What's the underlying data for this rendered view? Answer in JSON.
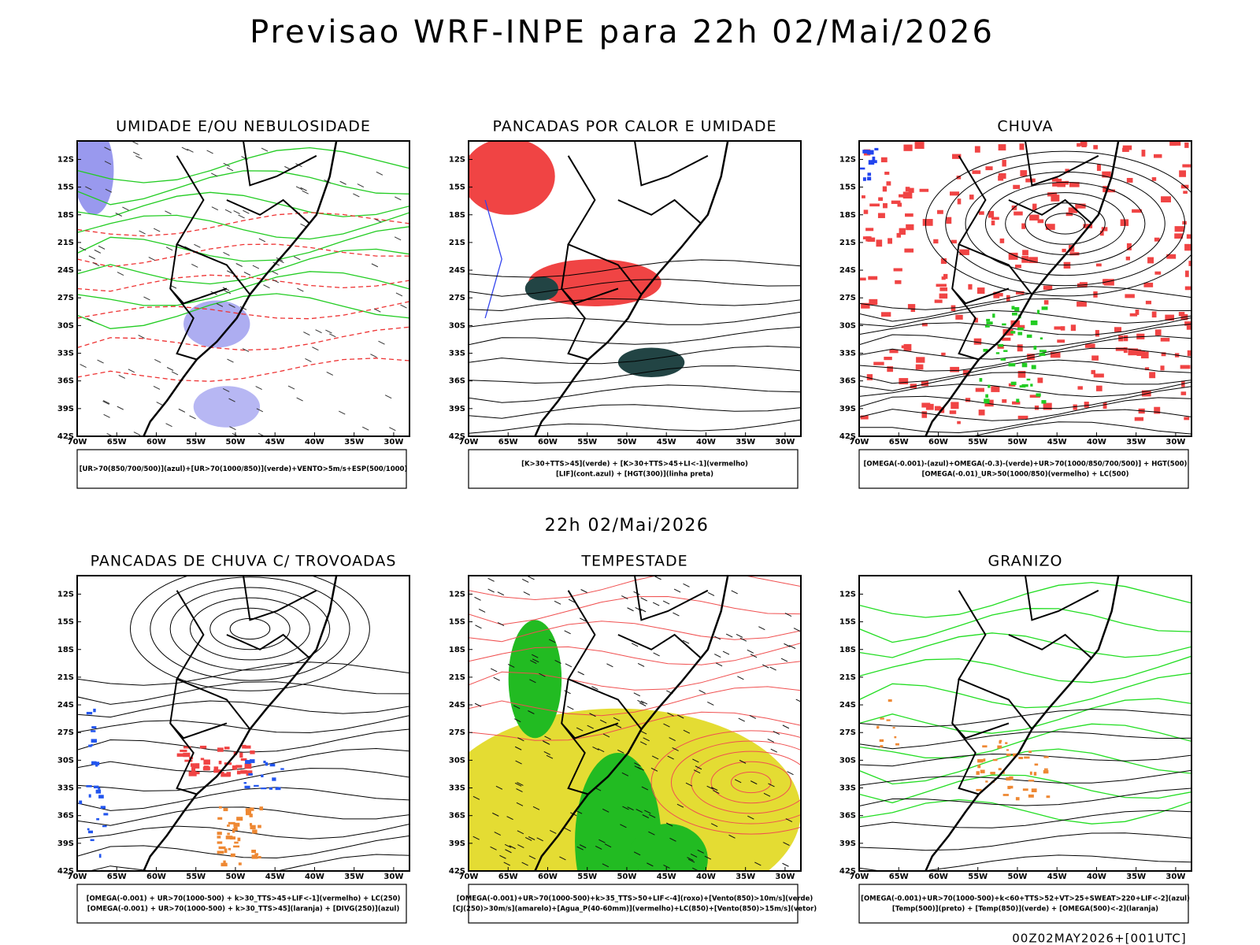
{
  "title": "Previsao WRF-INPE  para 22h 02/Mai/2026",
  "valid_time": "22h 02/Mai/2026",
  "run_label": "00Z02MAY2026+[001UTC]",
  "lat_labels": [
    "12S",
    "15S",
    "18S",
    "21S",
    "24S",
    "27S",
    "30S",
    "33S",
    "36S",
    "39S",
    "42S"
  ],
  "lon_labels": [
    "70W",
    "65W",
    "60W",
    "55W",
    "50W",
    "45W",
    "40W",
    "35W",
    "30W"
  ],
  "panels": [
    {
      "title": "UMIDADE E/OU NEBULOSIDADE",
      "legend": [
        "[UR>70(850/700/500)](azul)+[UR>70(1000/850)](verde)+VENTO>5m/s+ESP(500/1000)"
      ]
    },
    {
      "title": "PANCADAS POR CALOR E UMIDADE",
      "legend": [
        "[K>30+TTS>45](verde) + [K>30+TTS>45+LI<-1](vermelho)",
        "[LIF](cont.azul) + [HGT(300)](linha preta)"
      ]
    },
    {
      "title": "CHUVA",
      "legend": [
        "[OMEGA(-0.001)-(azul)+OMEGA(-0.3)-(verde)+UR>70(1000/850/700/500)] + HGT(500)",
        "[OMEGA(-0.01)_UR>50(1000/850)(vermelho) + LC(500)"
      ]
    },
    {
      "title": "PANCADAS DE CHUVA C/ TROVOADAS",
      "legend": [
        "[OMEGA(-0.001) + UR>70(1000-500) + k>30_TTS>45+LIF<-1](vermelho) + LC(250)",
        "[OMEGA(-0.001) + UR>70(1000-500) + k>30_TTS>45](laranja) + [DIVG(250)](azul)"
      ]
    },
    {
      "title": "TEMPESTADE",
      "legend": [
        "[OMEGA(-0.001)+UR>70(1000-500)+k>35_TTS>50+LIF<-4](roxo)+[Vento(850)>10m/s](verde)",
        "[CJ(250)>30m/s](amarelo)+[Agua_P(40-60mm)](vermelho)+LC(850)+[Vento(850)>15m/s](vetor)"
      ]
    },
    {
      "title": "GRANIZO",
      "legend": [
        "[OMEGA(-0.001)+UR>70(1000-500)+k<60+TTS>52+VT>25+SWEAT>220+LIF<-2](azul)",
        "[Temp(500)](preto) + [Temp(850)](verde) + [OMEGA(500)<-2](laranja)"
      ]
    }
  ]
}
